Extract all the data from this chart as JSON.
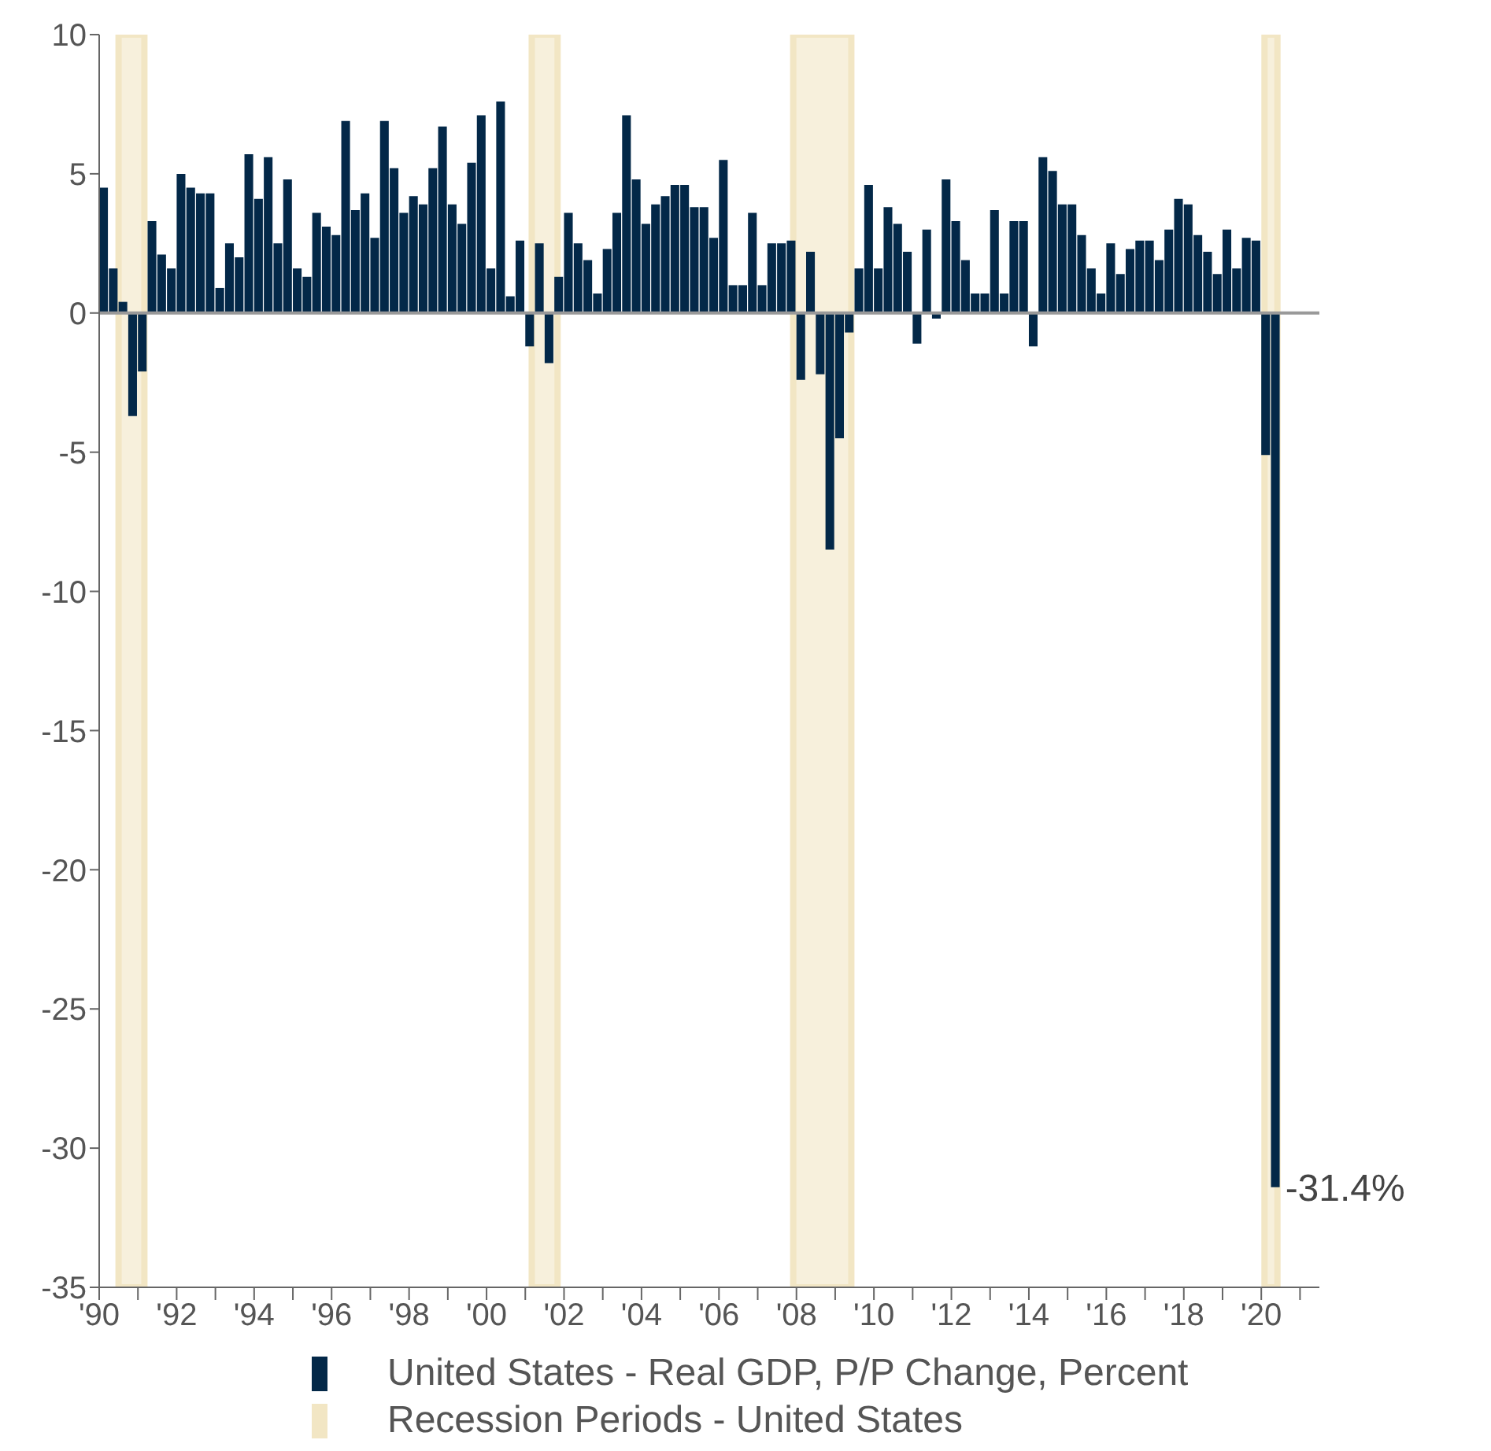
{
  "chart_data": {
    "type": "bar",
    "x": [
      "1990-01",
      "1990-04",
      "1990-07",
      "1990-10",
      "1991-01",
      "1991-04",
      "1991-07",
      "1991-10",
      "1992-01",
      "1992-04",
      "1992-07",
      "1992-10",
      "1993-01",
      "1993-04",
      "1993-07",
      "1993-10",
      "1994-01",
      "1994-04",
      "1994-07",
      "1994-10",
      "1995-01",
      "1995-04",
      "1995-07",
      "1995-10",
      "1996-01",
      "1996-04",
      "1996-07",
      "1996-10",
      "1997-01",
      "1997-04",
      "1997-07",
      "1997-10",
      "1998-01",
      "1998-04",
      "1998-07",
      "1998-10",
      "1999-01",
      "1999-04",
      "1999-07",
      "1999-10",
      "2000-01",
      "2000-04",
      "2000-07",
      "2000-10",
      "2001-01",
      "2001-04",
      "2001-07",
      "2001-10",
      "2002-01",
      "2002-04",
      "2002-07",
      "2002-10",
      "2003-01",
      "2003-04",
      "2003-07",
      "2003-10",
      "2004-01",
      "2004-04",
      "2004-07",
      "2004-10",
      "2005-01",
      "2005-04",
      "2005-07",
      "2005-10",
      "2006-01",
      "2006-04",
      "2006-07",
      "2006-10",
      "2007-01",
      "2007-04",
      "2007-07",
      "2007-10",
      "2008-01",
      "2008-04",
      "2008-07",
      "2008-10",
      "2009-01",
      "2009-04",
      "2009-07",
      "2009-10",
      "2010-01",
      "2010-04",
      "2010-07",
      "2010-10",
      "2011-01",
      "2011-04",
      "2011-07",
      "2011-10",
      "2012-01",
      "2012-04",
      "2012-07",
      "2012-10",
      "2013-01",
      "2013-04",
      "2013-07",
      "2013-10",
      "2014-01",
      "2014-04",
      "2014-07",
      "2014-10",
      "2015-01",
      "2015-04",
      "2015-07",
      "2015-10",
      "2016-01",
      "2016-04",
      "2016-07",
      "2016-10",
      "2017-01",
      "2017-04",
      "2017-07",
      "2017-10",
      "2018-01",
      "2018-04",
      "2018-07",
      "2018-10",
      "2019-01",
      "2019-04",
      "2019-07",
      "2019-10",
      "2020-01",
      "2020-04"
    ],
    "series": [
      {
        "name": "United States - Real GDP, P/P Change, Percent",
        "color": "#032848",
        "values": [
          4.5,
          1.6,
          0.4,
          -3.7,
          -2.1,
          3.3,
          2.1,
          1.6,
          5.0,
          4.5,
          4.3,
          4.3,
          0.9,
          2.5,
          2.0,
          5.7,
          4.1,
          5.6,
          2.5,
          4.8,
          1.6,
          1.3,
          3.6,
          3.1,
          2.8,
          6.9,
          3.7,
          4.3,
          2.7,
          6.9,
          5.2,
          3.6,
          4.2,
          3.9,
          5.2,
          6.7,
          3.9,
          3.2,
          5.4,
          7.1,
          1.6,
          7.6,
          0.6,
          2.6,
          -1.2,
          2.5,
          -1.8,
          1.3,
          3.6,
          2.5,
          1.9,
          0.7,
          2.3,
          3.6,
          7.1,
          4.8,
          3.2,
          3.9,
          4.2,
          4.6,
          4.6,
          3.8,
          3.8,
          2.7,
          5.5,
          1.0,
          1.0,
          3.6,
          1.0,
          2.5,
          2.5,
          2.6,
          -2.4,
          2.2,
          -2.2,
          -8.5,
          -4.5,
          -0.7,
          1.6,
          4.6,
          1.6,
          3.8,
          3.2,
          2.2,
          -1.1,
          3.0,
          -0.2,
          4.8,
          3.3,
          1.9,
          0.7,
          0.7,
          3.7,
          0.7,
          3.3,
          3.3,
          -1.2,
          5.6,
          5.1,
          3.9,
          3.9,
          2.8,
          1.6,
          0.7,
          2.5,
          1.4,
          2.3,
          2.6,
          2.6,
          1.9,
          3.0,
          4.1,
          3.9,
          2.8,
          2.2,
          1.4,
          3.0,
          1.6,
          2.7,
          2.6,
          -5.1,
          -31.4
        ]
      }
    ],
    "xlim": [
      "1990-01",
      "2021-07"
    ],
    "xticks": [
      {
        "value": "1990-01",
        "label": "'90"
      },
      {
        "value": "1991-01",
        "label": null
      },
      {
        "value": "1992-01",
        "label": "'92"
      },
      {
        "value": "1993-01",
        "label": null
      },
      {
        "value": "1994-01",
        "label": "'94"
      },
      {
        "value": "1995-01",
        "label": null
      },
      {
        "value": "1996-01",
        "label": "'96"
      },
      {
        "value": "1997-01",
        "label": null
      },
      {
        "value": "1998-01",
        "label": "'98"
      },
      {
        "value": "1999-01",
        "label": null
      },
      {
        "value": "2000-01",
        "label": "'00"
      },
      {
        "value": "2001-01",
        "label": null
      },
      {
        "value": "2002-01",
        "label": "'02"
      },
      {
        "value": "2003-01",
        "label": null
      },
      {
        "value": "2004-01",
        "label": "'04"
      },
      {
        "value": "2005-01",
        "label": null
      },
      {
        "value": "2006-01",
        "label": "'06"
      },
      {
        "value": "2007-01",
        "label": null
      },
      {
        "value": "2008-01",
        "label": "'08"
      },
      {
        "value": "2009-01",
        "label": null
      },
      {
        "value": "2010-01",
        "label": "'10"
      },
      {
        "value": "2011-01",
        "label": null
      },
      {
        "value": "2012-01",
        "label": "'12"
      },
      {
        "value": "2013-01",
        "label": null
      },
      {
        "value": "2014-01",
        "label": "'14"
      },
      {
        "value": "2015-01",
        "label": null
      },
      {
        "value": "2016-01",
        "label": "'16"
      },
      {
        "value": "2017-01",
        "label": null
      },
      {
        "value": "2018-01",
        "label": "'18"
      },
      {
        "value": "2019-01",
        "label": null
      },
      {
        "value": "2020-01",
        "label": "'20"
      },
      {
        "value": "2021-01",
        "label": null
      }
    ],
    "ylim": [
      -35,
      10
    ],
    "yticks": [
      -35,
      -30,
      -25,
      -20,
      -15,
      -10,
      -5,
      0,
      5,
      10
    ],
    "ref_lines": [
      {
        "axis": "y",
        "value": 0,
        "color": "#999999"
      }
    ],
    "bands": [
      {
        "axis": "x",
        "from": "1990-07",
        "to": "1991-03",
        "label": "Recession Periods - United States",
        "color": "#f2e6c4"
      },
      {
        "axis": "x",
        "from": "2001-03",
        "to": "2001-11",
        "color": "#f2e6c4"
      },
      {
        "axis": "x",
        "from": "2007-12",
        "to": "2009-06",
        "color": "#f2e6c4"
      },
      {
        "axis": "x",
        "from": "2020-02",
        "to": "2020-06",
        "color": "#f2e6c4"
      }
    ],
    "annotations": [
      {
        "text": "-31.4%",
        "x": "2020-04",
        "y": -31.4
      }
    ],
    "legend": "bottom"
  }
}
